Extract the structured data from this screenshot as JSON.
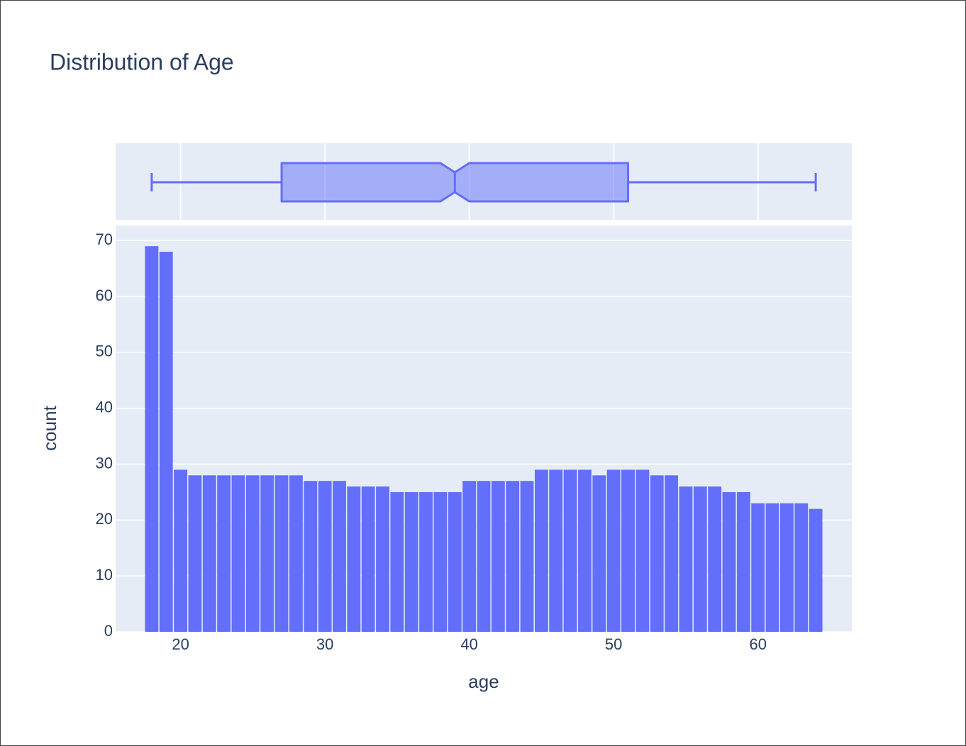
{
  "chart_data": {
    "type": "histogram",
    "title": "Distribution of Age",
    "xlabel": "age",
    "ylabel": "count",
    "bins": [
      17.5,
      18.5,
      19.5,
      20.5,
      21.5,
      22.5,
      23.5,
      24.5,
      25.5,
      26.5,
      27.5,
      28.5,
      29.5,
      30.5,
      31.5,
      32.5,
      33.5,
      34.5,
      35.5,
      36.5,
      37.5,
      38.5,
      39.5,
      40.5,
      41.5,
      42.5,
      43.5,
      44.5,
      45.5,
      46.5,
      47.5,
      48.5,
      49.5,
      50.5,
      51.5,
      52.5,
      53.5,
      54.5,
      55.5,
      56.5,
      57.5,
      58.5,
      59.5,
      60.5,
      61.5,
      62.5,
      63.5,
      64.5
    ],
    "values": [
      69,
      68,
      29,
      28,
      28,
      28,
      28,
      28,
      28,
      28,
      28,
      27,
      27,
      27,
      26,
      26,
      26,
      25,
      25,
      25,
      25,
      25,
      27,
      27,
      27,
      27,
      27,
      29,
      29,
      29,
      29,
      28,
      29,
      29,
      29,
      28,
      28,
      26,
      26,
      26,
      25,
      25,
      23,
      23,
      23,
      23,
      22
    ],
    "color": "#636efa",
    "xlim": [
      15.5,
      66.5
    ],
    "xticks": [
      20,
      30,
      40,
      50,
      60
    ],
    "ylim": [
      0,
      72.7
    ],
    "yticks": [
      0,
      10,
      20,
      30,
      40,
      50,
      60,
      70
    ],
    "grid": true,
    "box": {
      "min": 18,
      "q1": 27,
      "median": 39,
      "q3": 51,
      "max": 64,
      "notch_low": 38,
      "notch_high": 40
    }
  }
}
